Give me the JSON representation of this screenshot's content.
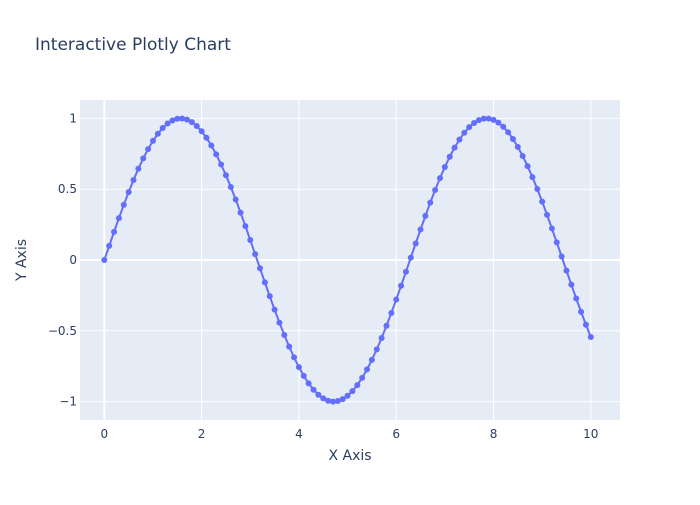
{
  "chart_data": {
    "type": "line",
    "title": "Interactive Plotly Chart",
    "xlabel": "X Axis",
    "ylabel": "Y Axis",
    "xlim": [
      -0.5,
      10.6
    ],
    "ylim": [
      -1.13,
      1.13
    ],
    "x_ticks": [
      0,
      2,
      4,
      6,
      8,
      10
    ],
    "x_tick_labels": [
      "0",
      "2",
      "4",
      "6",
      "8",
      "10"
    ],
    "y_ticks": [
      -1,
      -0.5,
      0,
      0.5,
      1
    ],
    "y_tick_labels": [
      "−1",
      "−0.5",
      "0",
      "0.5",
      "1"
    ],
    "grid": true,
    "legend": "none",
    "mode": "lines+markers",
    "series": [
      {
        "x": [
          0,
          0.1,
          0.2,
          0.3,
          0.4,
          0.5,
          0.6,
          0.7,
          0.8,
          0.9,
          1.0,
          1.1,
          1.2,
          1.3,
          1.4,
          1.5,
          1.6,
          1.7,
          1.8,
          1.9,
          2.0,
          2.1,
          2.2,
          2.3,
          2.4,
          2.5,
          2.6,
          2.7,
          2.8,
          2.9,
          3.0,
          3.1,
          3.2,
          3.3,
          3.4,
          3.5,
          3.6,
          3.7,
          3.8,
          3.9,
          4.0,
          4.1,
          4.2,
          4.3,
          4.4,
          4.5,
          4.6,
          4.7,
          4.8,
          4.9,
          5.0,
          5.1,
          5.2,
          5.3,
          5.4,
          5.5,
          5.6,
          5.7,
          5.8,
          5.9,
          6.0,
          6.1,
          6.2,
          6.3,
          6.4,
          6.5,
          6.6,
          6.7,
          6.8,
          6.9,
          7.0,
          7.1,
          7.2,
          7.3,
          7.4,
          7.5,
          7.6,
          7.7,
          7.8,
          7.9,
          8.0,
          8.1,
          8.2,
          8.3,
          8.4,
          8.5,
          8.6,
          8.7,
          8.8,
          8.9,
          9.0,
          9.1,
          9.2,
          9.3,
          9.4,
          9.5,
          9.6,
          9.7,
          9.8,
          9.9,
          10.0
        ],
        "y": [
          0,
          0.0998,
          0.1987,
          0.2955,
          0.3894,
          0.4794,
          0.5646,
          0.6442,
          0.7174,
          0.7833,
          0.8415,
          0.8912,
          0.932,
          0.9636,
          0.9854,
          0.9975,
          0.9996,
          0.9917,
          0.9738,
          0.9463,
          0.9093,
          0.8632,
          0.8085,
          0.7457,
          0.6755,
          0.5985,
          0.5155,
          0.4274,
          0.335,
          0.2392,
          0.1411,
          0.0416,
          -0.0584,
          -0.1577,
          -0.2555,
          -0.3508,
          -0.4425,
          -0.5298,
          -0.6119,
          -0.6878,
          -0.7568,
          -0.8183,
          -0.8716,
          -0.9162,
          -0.9516,
          -0.9775,
          -0.9937,
          -0.9999,
          -0.9962,
          -0.9825,
          -0.9589,
          -0.9258,
          -0.8835,
          -0.8323,
          -0.7728,
          -0.7055,
          -0.6313,
          -0.5507,
          -0.4646,
          -0.3739,
          -0.2794,
          -0.1822,
          -0.0831,
          0.0168,
          0.1165,
          0.2151,
          0.3115,
          0.4048,
          0.4941,
          0.5784,
          0.657,
          0.729,
          0.7937,
          0.8504,
          0.8987,
          0.938,
          0.9679,
          0.9882,
          0.9985,
          0.9989,
          0.9894,
          0.9699,
          0.9407,
          0.9022,
          0.8546,
          0.7985,
          0.7344,
          0.663,
          0.585,
          0.501,
          0.4121,
          0.319,
          0.2229,
          0.1245,
          0.0248,
          -0.0752,
          -0.1743,
          -0.2718,
          -0.3665,
          -0.4575,
          -0.544
        ]
      }
    ],
    "colors": {
      "plot_bg": "#e5ecf6",
      "paper_bg": "#ffffff",
      "grid": "#ffffff",
      "line": "#636efa",
      "text": "#2a3f5f"
    }
  }
}
